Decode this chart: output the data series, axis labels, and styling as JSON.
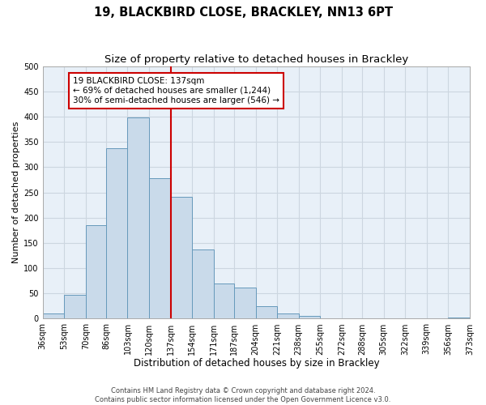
{
  "title": "19, BLACKBIRD CLOSE, BRACKLEY, NN13 6PT",
  "subtitle": "Size of property relative to detached houses in Brackley",
  "xlabel": "Distribution of detached houses by size in Brackley",
  "ylabel": "Number of detached properties",
  "bar_edges": [
    36,
    53,
    70,
    86,
    103,
    120,
    137,
    154,
    171,
    187,
    204,
    221,
    238,
    255,
    272,
    288,
    305,
    322,
    339,
    356,
    373
  ],
  "bar_heights": [
    10,
    47,
    185,
    338,
    398,
    278,
    242,
    137,
    70,
    62,
    25,
    10,
    5,
    0,
    0,
    0,
    0,
    0,
    0,
    2
  ],
  "bar_color": "#c9daea",
  "bar_edgecolor": "#6699bb",
  "property_line_x": 137,
  "property_line_color": "#cc0000",
  "annotation_line1": "19 BLACKBIRD CLOSE: 137sqm",
  "annotation_line2": "← 69% of detached houses are smaller (1,244)",
  "annotation_line3": "30% of semi-detached houses are larger (546) →",
  "annotation_box_color": "#ffffff",
  "annotation_box_edgecolor": "#cc0000",
  "ylim": [
    0,
    500
  ],
  "xlim": [
    36,
    373
  ],
  "ytick_values": [
    0,
    50,
    100,
    150,
    200,
    250,
    300,
    350,
    400,
    450,
    500
  ],
  "xtick_labels": [
    "36sqm",
    "53sqm",
    "70sqm",
    "86sqm",
    "103sqm",
    "120sqm",
    "137sqm",
    "154sqm",
    "171sqm",
    "187sqm",
    "204sqm",
    "221sqm",
    "238sqm",
    "255sqm",
    "272sqm",
    "288sqm",
    "305sqm",
    "322sqm",
    "339sqm",
    "356sqm",
    "373sqm"
  ],
  "xtick_positions": [
    36,
    53,
    70,
    86,
    103,
    120,
    137,
    154,
    171,
    187,
    204,
    221,
    238,
    255,
    272,
    288,
    305,
    322,
    339,
    356,
    373
  ],
  "grid_color": "#ccd6e0",
  "background_color": "#e8f0f8",
  "footer_text": "Contains HM Land Registry data © Crown copyright and database right 2024.\nContains public sector information licensed under the Open Government Licence v3.0.",
  "title_fontsize": 10.5,
  "subtitle_fontsize": 9.5,
  "xlabel_fontsize": 8.5,
  "ylabel_fontsize": 8,
  "tick_fontsize": 7,
  "annotation_fontsize": 7.5,
  "footer_fontsize": 6
}
